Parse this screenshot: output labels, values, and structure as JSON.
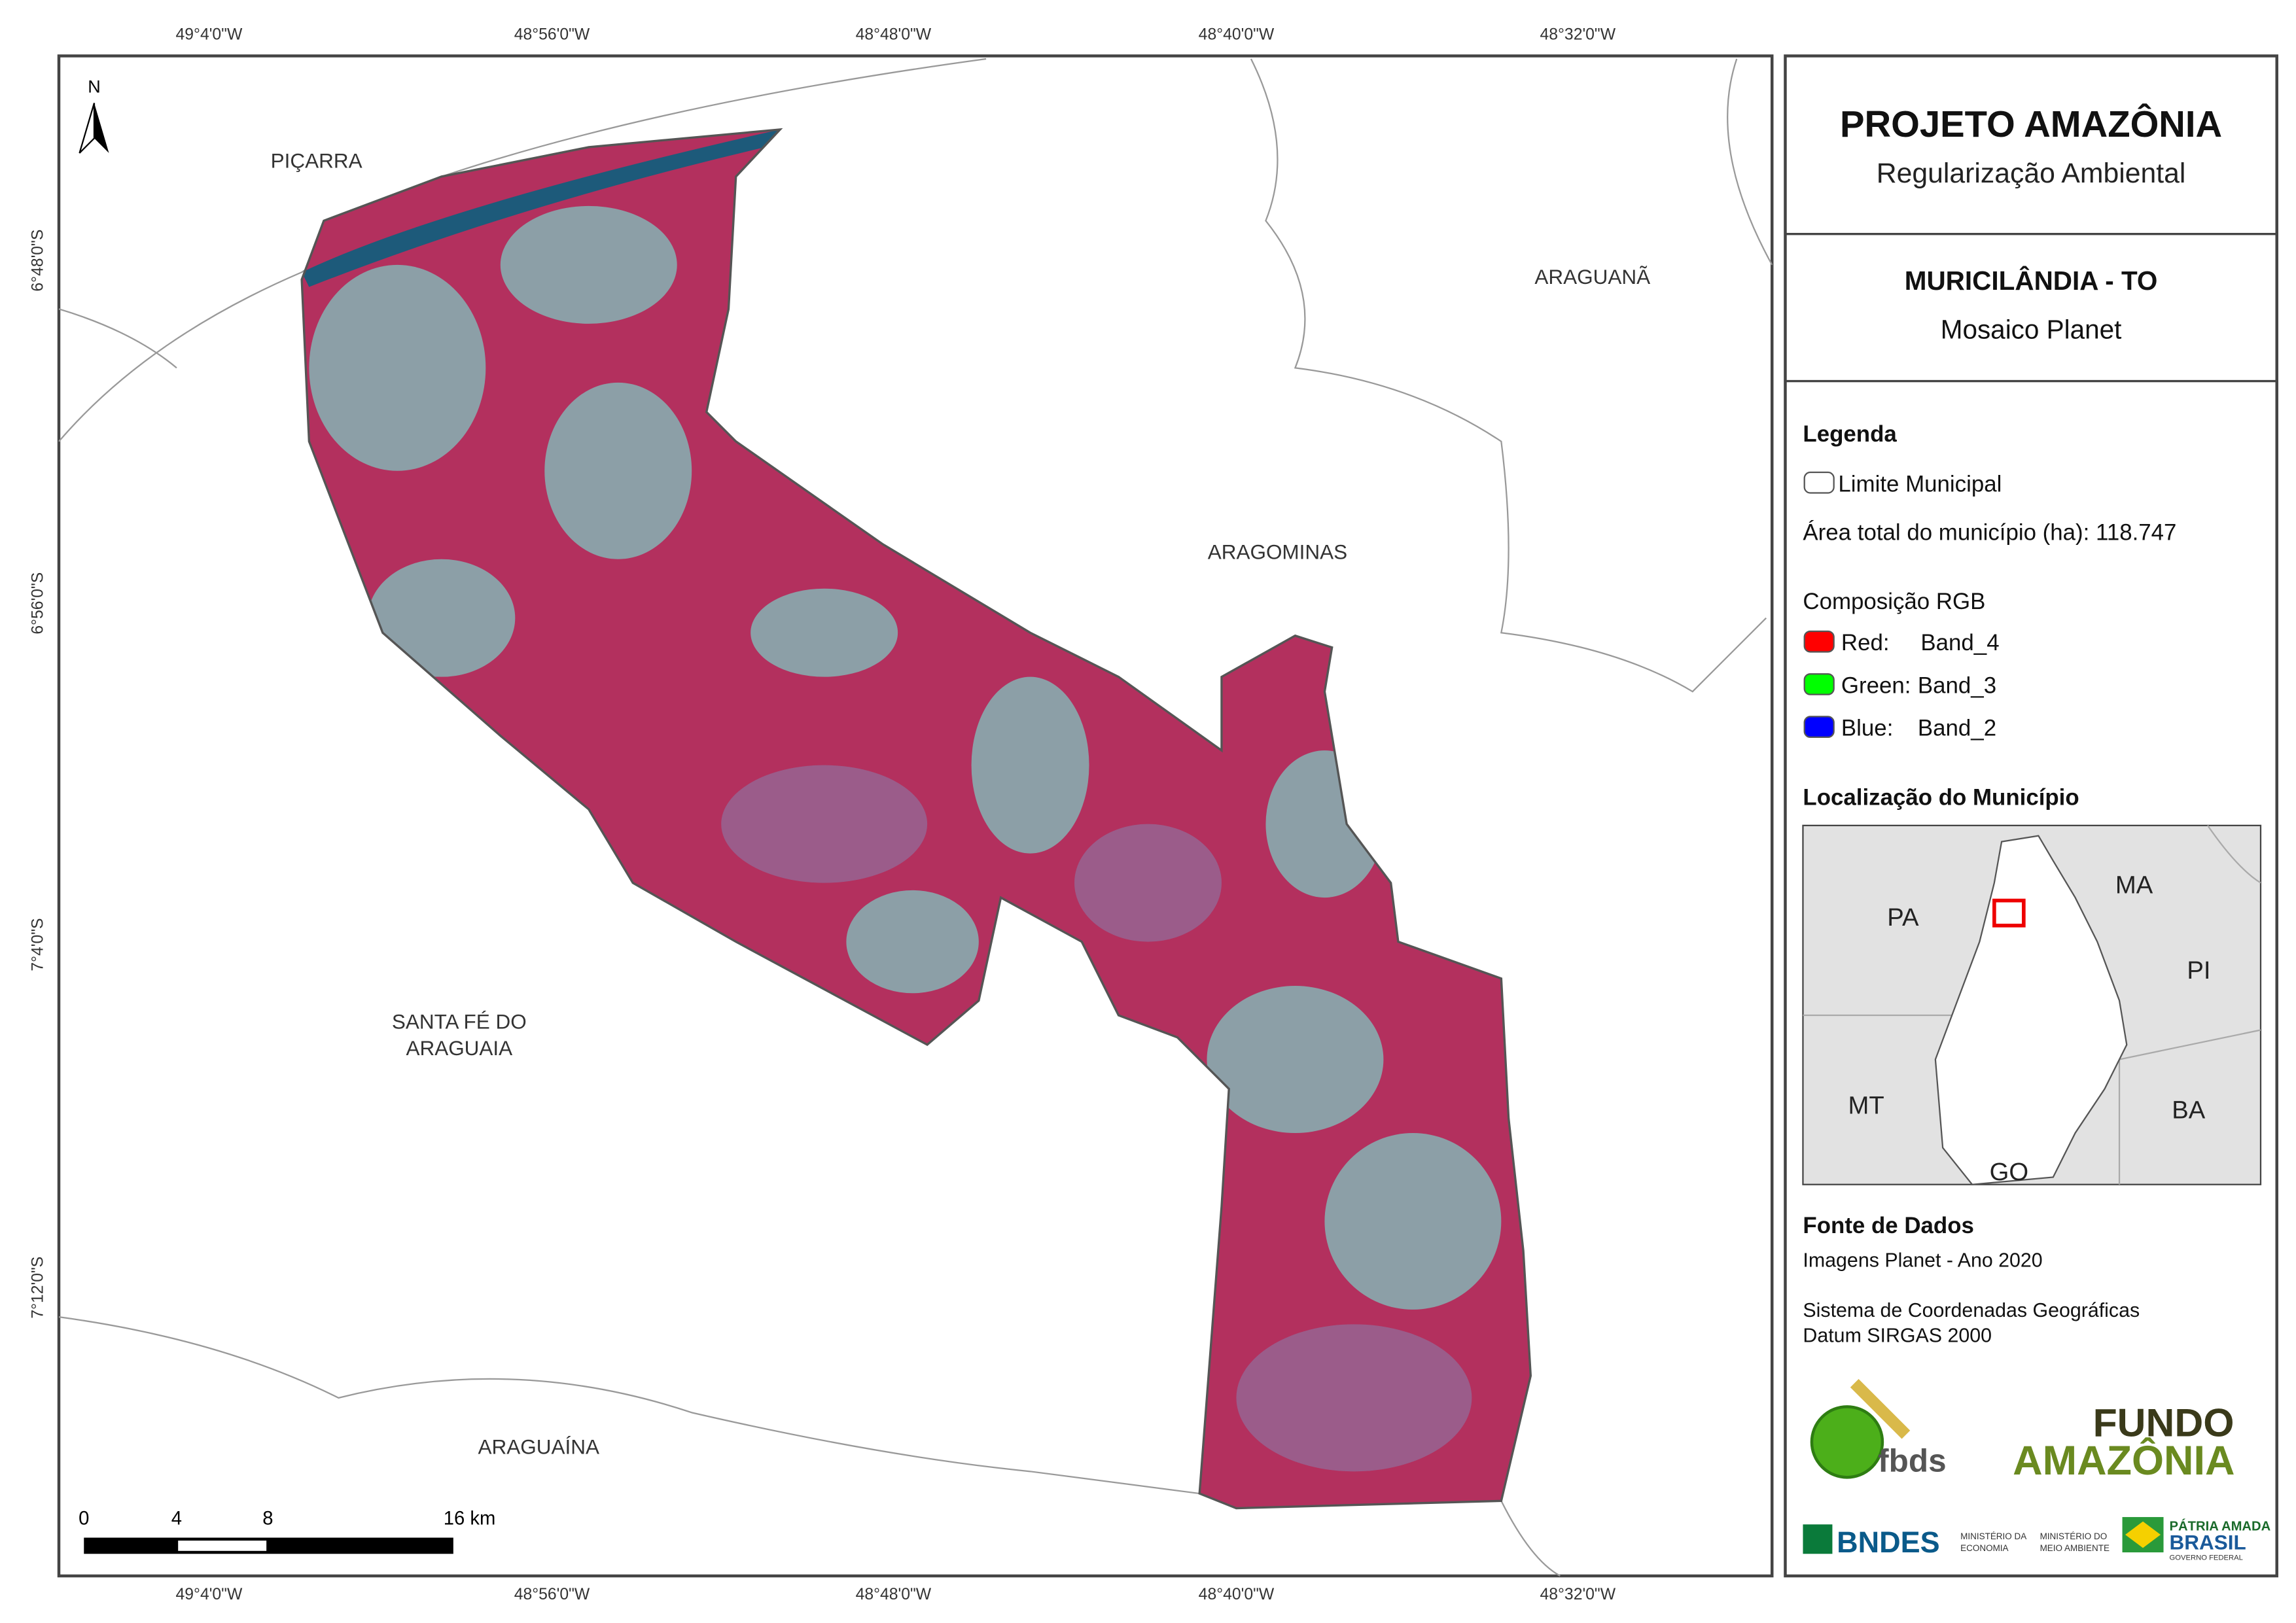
{
  "header": {
    "title": "PROJETO AMAZÔNIA",
    "subtitle": "Regularização Ambiental"
  },
  "map_title": {
    "title": "MURICILÂNDIA - TO",
    "subtitle": "Mosaico Planet"
  },
  "coordinates": {
    "longitudes": [
      "49°4'0\"W",
      "48°56'0\"W",
      "48°48'0\"W",
      "48°40'0\"W",
      "48°32'0\"W"
    ],
    "latitudes": [
      "6°48'0\"S",
      "6°56'0\"S",
      "7°4'0\"S",
      "7°12'0\"S"
    ]
  },
  "places": {
    "picarra": "PIÇARRA",
    "araguana": "ARAGUANÃ",
    "aragominas": "ARAGOMINAS",
    "santa_fe": [
      "SANTA FÉ DO",
      "ARAGUAIA"
    ],
    "araguaina": "ARAGUAÍNA"
  },
  "north": "N",
  "scale_bar": {
    "labels": [
      "0",
      "4",
      "8",
      "16 km"
    ]
  },
  "legend": {
    "heading": "Legenda",
    "boundary": "Limite Municipal",
    "area": "Área total do município (ha): 118.747",
    "rgb_heading": "Composição RGB",
    "bands": [
      {
        "label": "Red:",
        "band": "Band_4"
      },
      {
        "label": "Green:",
        "band": "Band_3"
      },
      {
        "label": "Blue:",
        "band": "Band_2"
      }
    ]
  },
  "location": {
    "heading": "Localização do Município",
    "states": [
      "PA",
      "MA",
      "PI",
      "MT",
      "BA",
      "GO"
    ]
  },
  "sources": {
    "heading": "Fonte de Dados",
    "imagery": "Imagens Planet - Ano 2020",
    "crs": "Sistema de Coordenadas Geográficas",
    "datum": "Datum SIRGAS 2000"
  },
  "logos": {
    "fbds": "fbds",
    "fundo": "FUNDO",
    "amazonia": "AMAZÔNIA",
    "bndes": "BNDES",
    "min_economia": [
      "MINISTÉRIO DA",
      "ECONOMIA"
    ],
    "min_ambiente": [
      "MINISTÉRIO DO",
      "MEIO AMBIENTE"
    ],
    "patria": "PÁTRIA AMADA",
    "brasil": "BRASIL",
    "governo": "GOVERNO FEDERAL"
  }
}
